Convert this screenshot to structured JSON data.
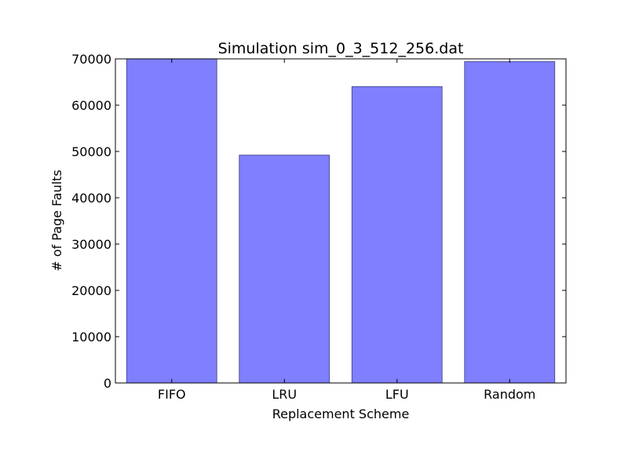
{
  "chart_data": {
    "type": "bar",
    "title": "Simulation sim_0_3_512_256.dat",
    "xlabel": "Replacement Scheme",
    "ylabel": "# of Page Faults",
    "categories": [
      "FIFO",
      "LRU",
      "LFU",
      "Random"
    ],
    "values": [
      70000,
      49200,
      64000,
      69400
    ],
    "ylim": [
      0,
      70000
    ],
    "yticks": [
      0,
      10000,
      20000,
      30000,
      40000,
      50000,
      60000,
      70000
    ],
    "grid": false,
    "legend": "none",
    "bar_color": "#7f7fff",
    "bar_edge_color": "#4d4d99"
  }
}
